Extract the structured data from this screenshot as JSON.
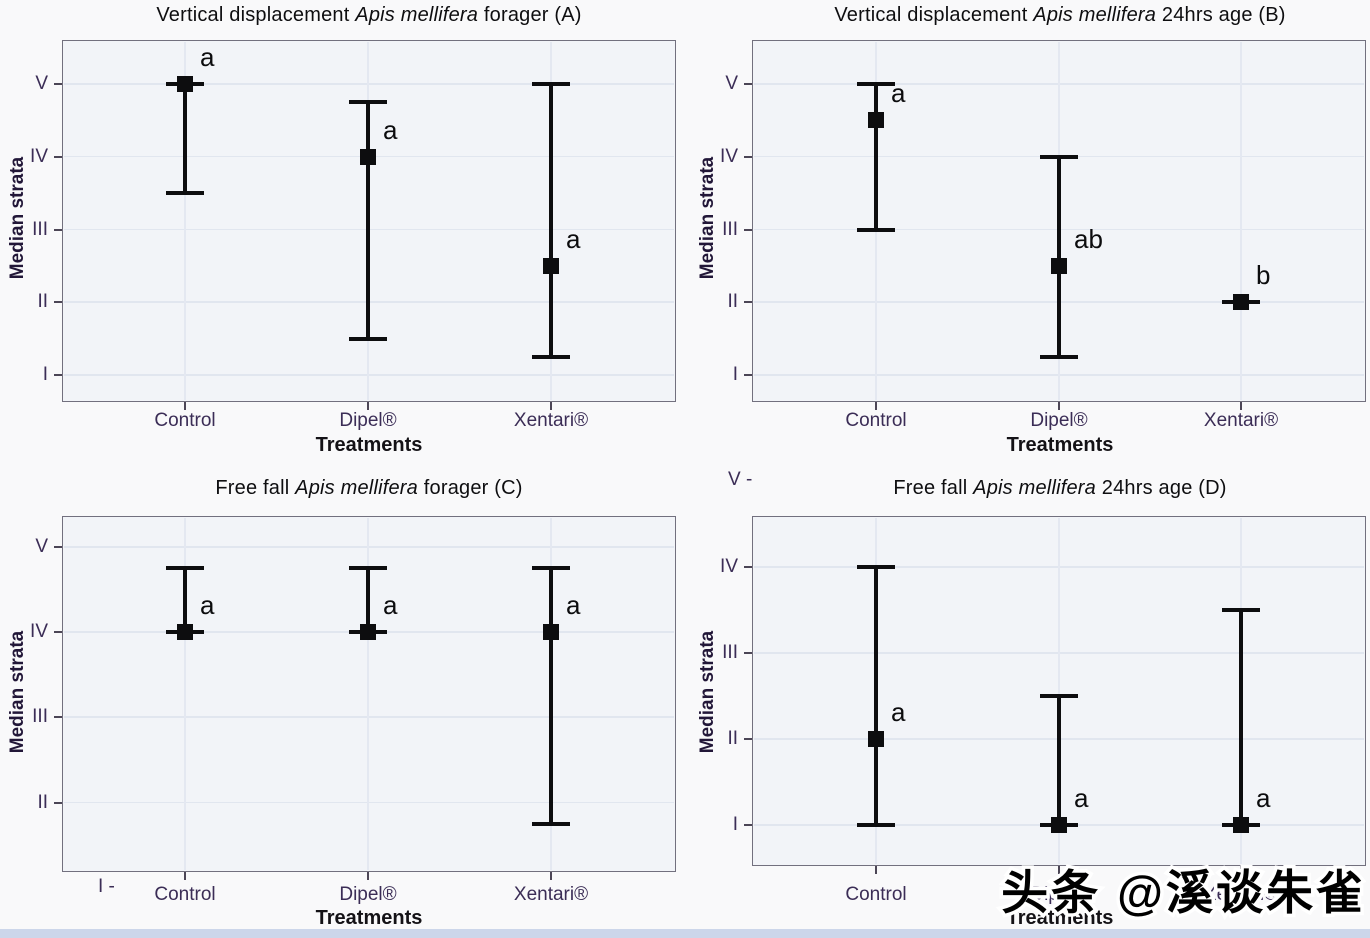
{
  "figure": {
    "y_axis_title": "Median strata",
    "x_axis_title": "Treatments",
    "y_tick_labels": [
      "I",
      "II",
      "III",
      "IV",
      "V"
    ],
    "x_categories": [
      "Control",
      "Dipel®",
      "Xentari®"
    ],
    "outside_ticks": {
      "panel_d_top": "V -",
      "panel_c_bottom": "I -"
    }
  },
  "watermark": {
    "text": "头条 @溪谈朱雀"
  },
  "colors": {
    "data_marker": "#0d0d0f",
    "panel_background": "#f2f4f8",
    "panel_border": "#72707e",
    "gridline": "#e1e6ef",
    "tick_text": "#3b2d56",
    "title_text": "#0e0e10",
    "watermark_fill": "#000000",
    "watermark_outline": "#ffffff",
    "bottom_strip": "#ccd6ea"
  },
  "chart_data": [
    {
      "type": "scatter",
      "panel": "A",
      "title": "Vertical displacement Apis mellifera forager (A)",
      "title_parts": {
        "pre": "Vertical displacement ",
        "italic": "Apis mellifera",
        "post": " forager (A)"
      },
      "xlabel": "Treatments",
      "ylabel": "Median strata",
      "categories": [
        "Control",
        "Dipel®",
        "Xentari®"
      ],
      "y_scale": {
        "ticks": [
          "I",
          "II",
          "III",
          "IV",
          "V"
        ],
        "values": [
          1,
          2,
          3,
          4,
          5
        ]
      },
      "grid": true,
      "series": [
        {
          "treatment": "Control",
          "median": 5.0,
          "whisker_low": 3.5,
          "whisker_high": 5.0,
          "letter": "a"
        },
        {
          "treatment": "Dipel®",
          "median": 4.0,
          "whisker_low": 1.5,
          "whisker_high": 4.75,
          "letter": "a"
        },
        {
          "treatment": "Xentari®",
          "median": 2.5,
          "whisker_low": 1.25,
          "whisker_high": 5.0,
          "letter": "a"
        }
      ]
    },
    {
      "type": "scatter",
      "panel": "B",
      "title": "Vertical displacement Apis mellifera 24hrs age (B)",
      "title_parts": {
        "pre": "Vertical displacement ",
        "italic": "Apis mellifera",
        "post": " 24hrs age (B)"
      },
      "xlabel": "Treatments",
      "ylabel": "Median strata",
      "categories": [
        "Control",
        "Dipel®",
        "Xentari®"
      ],
      "y_scale": {
        "ticks": [
          "I",
          "II",
          "III",
          "IV",
          "V"
        ],
        "values": [
          1,
          2,
          3,
          4,
          5
        ]
      },
      "grid": true,
      "series": [
        {
          "treatment": "Control",
          "median": 4.5,
          "whisker_low": 3.0,
          "whisker_high": 5.0,
          "letter": "a"
        },
        {
          "treatment": "Dipel®",
          "median": 2.5,
          "whisker_low": 1.25,
          "whisker_high": 4.0,
          "letter": "ab"
        },
        {
          "treatment": "Xentari®",
          "median": 2.0,
          "whisker_low": 2.0,
          "whisker_high": 2.0,
          "letter": "b"
        }
      ]
    },
    {
      "type": "scatter",
      "panel": "C",
      "title": "Free fall Apis mellifera forager (C)",
      "title_parts": {
        "pre": "Free fall ",
        "italic": "Apis mellifera",
        "post": " forager (C)"
      },
      "xlabel": "Treatments",
      "ylabel": "Median strata",
      "categories": [
        "Control",
        "Dipel®",
        "Xentari®"
      ],
      "y_scale": {
        "ticks": [
          "I",
          "II",
          "III",
          "IV",
          "V"
        ],
        "values": [
          1,
          2,
          3,
          4,
          5
        ]
      },
      "grid": true,
      "series": [
        {
          "treatment": "Control",
          "median": 4.0,
          "whisker_low": 4.0,
          "whisker_high": 4.75,
          "letter": "a"
        },
        {
          "treatment": "Dipel®",
          "median": 4.0,
          "whisker_low": 4.0,
          "whisker_high": 4.75,
          "letter": "a"
        },
        {
          "treatment": "Xentari®",
          "median": 4.0,
          "whisker_low": 1.75,
          "whisker_high": 4.75,
          "letter": "a"
        }
      ]
    },
    {
      "type": "scatter",
      "panel": "D",
      "title": "Free fall Apis mellifera 24hrs age (D)",
      "title_parts": {
        "pre": "Free fall ",
        "italic": "Apis mellifera",
        "post": " 24hrs age (D)"
      },
      "xlabel": "Treatments",
      "ylabel": "Median strata",
      "categories": [
        "Control",
        "Dipel®",
        "Xentari®"
      ],
      "y_scale": {
        "ticks": [
          "I",
          "II",
          "III",
          "IV",
          "V"
        ],
        "values": [
          1,
          2,
          3,
          4,
          5
        ]
      },
      "grid": true,
      "series": [
        {
          "treatment": "Control",
          "median": 2.0,
          "whisker_low": 1.0,
          "whisker_high": 4.0,
          "letter": "a"
        },
        {
          "treatment": "Dipel®",
          "median": 1.0,
          "whisker_low": 1.0,
          "whisker_high": 2.5,
          "letter": "a"
        },
        {
          "treatment": "Xentari®",
          "median": 1.0,
          "whisker_low": 1.0,
          "whisker_high": 3.5,
          "letter": "a"
        }
      ]
    }
  ]
}
